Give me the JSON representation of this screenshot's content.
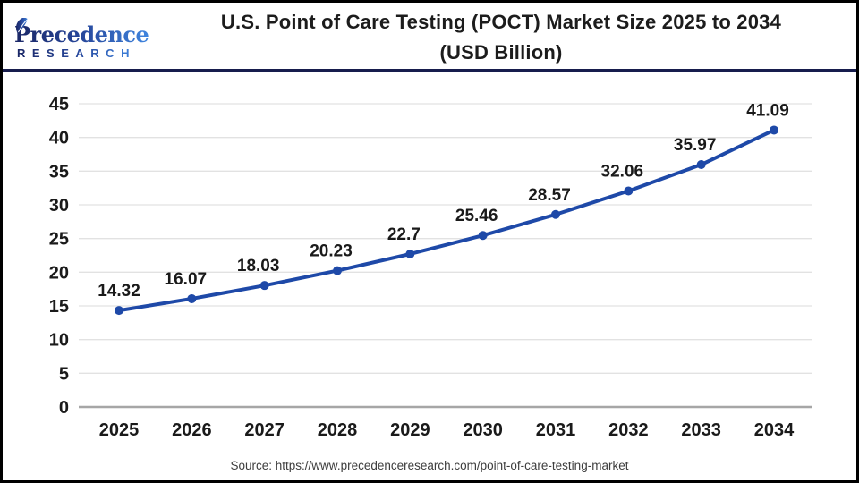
{
  "header": {
    "logo_name": "Precedence",
    "logo_subname": "RESEARCH",
    "title_line1": "U.S. Point of Care Testing (POCT) Market Size 2025 to 2034",
    "title_line2": "(USD Billion)"
  },
  "chart_data": {
    "type": "line",
    "title": "U.S. Point of Care Testing (POCT) Market Size 2025 to 2034 (USD Billion)",
    "categories": [
      "2025",
      "2026",
      "2027",
      "2028",
      "2029",
      "2030",
      "2031",
      "2032",
      "2033",
      "2034"
    ],
    "values": [
      14.32,
      16.07,
      18.03,
      20.23,
      22.7,
      25.46,
      28.57,
      32.06,
      35.97,
      41.09
    ],
    "value_labels": [
      "14.32",
      "16.07",
      "18.03",
      "20.23",
      "22.7",
      "25.46",
      "28.57",
      "32.06",
      "35.97",
      "41.09"
    ],
    "xlabel": "",
    "ylabel": "",
    "ylim": [
      0,
      45
    ],
    "yticks": [
      0,
      5,
      10,
      15,
      20,
      25,
      30,
      35,
      40,
      45
    ],
    "grid": true,
    "legend": "none",
    "marker": "circle"
  },
  "footer": {
    "source": "Source: https://www.precedenceresearch.com/point-of-care-testing-market"
  },
  "colors": {
    "line": "#1e49a8",
    "grid": "#e2e2e2",
    "axis": "#a6a6a6",
    "divider": "#171d4d",
    "tick_text": "#1a1a1a",
    "data_label_text": "#1a1a1a",
    "source_text": "#3d3d3d",
    "logo_navy": "#1a2766",
    "logo_mid": "#27479b",
    "logo_blue": "#3f85df"
  }
}
